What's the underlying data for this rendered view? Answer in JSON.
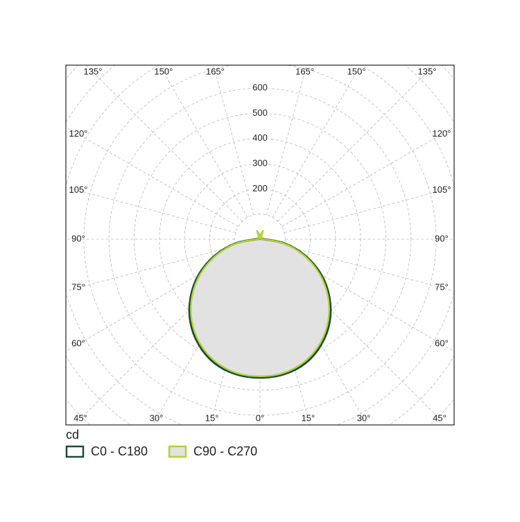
{
  "chart_data": {
    "type": "polar",
    "unit": "cd",
    "rlim": [
      0,
      1000
    ],
    "rticks": [
      200,
      300,
      400,
      500,
      600
    ],
    "rgrid": [
      100,
      200,
      300,
      400,
      500,
      600,
      700,
      800,
      900,
      1000
    ],
    "angle_ticks": [
      {
        "value": -165,
        "label": "165°"
      },
      {
        "value": -150,
        "label": "150°"
      },
      {
        "value": -135,
        "label": "135°"
      },
      {
        "value": -120,
        "label": "120°"
      },
      {
        "value": -105,
        "label": "105°"
      },
      {
        "value": -90,
        "label": "90°"
      },
      {
        "value": -75,
        "label": "75°"
      },
      {
        "value": -60,
        "label": "60°"
      },
      {
        "value": -45,
        "label": "45°"
      },
      {
        "value": -30,
        "label": "30°"
      },
      {
        "value": -15,
        "label": "15°"
      },
      {
        "value": 0,
        "label": "0°"
      },
      {
        "value": 15,
        "label": "15°"
      },
      {
        "value": 30,
        "label": "30°"
      },
      {
        "value": 45,
        "label": "45°"
      },
      {
        "value": 60,
        "label": "60°"
      },
      {
        "value": 75,
        "label": "75°"
      },
      {
        "value": 90,
        "label": "90°"
      },
      {
        "value": 105,
        "label": "105°"
      },
      {
        "value": 120,
        "label": "120°"
      },
      {
        "value": 135,
        "label": "135°"
      },
      {
        "value": 150,
        "label": "150°"
      },
      {
        "value": 165,
        "label": "165°"
      }
    ],
    "x": [
      -180,
      -170,
      -160,
      -150,
      -140,
      -130,
      -120,
      -110,
      -100,
      -90,
      -80,
      -70,
      -60,
      -50,
      -40,
      -30,
      -20,
      -10,
      0,
      10,
      20,
      30,
      40,
      50,
      60,
      70,
      80,
      90,
      100,
      110,
      120,
      130,
      140,
      150,
      160,
      170,
      180
    ],
    "fill": "#e2e2e2",
    "series": [
      {
        "name": "C0 - C180",
        "color": "#1e4a3b",
        "values": [
          8,
          8,
          12,
          8,
          5,
          5,
          5,
          5,
          5,
          15,
          100,
          190,
          280,
          360,
          430,
          485,
          525,
          545,
          550,
          545,
          525,
          485,
          430,
          360,
          280,
          190,
          100,
          15,
          5,
          5,
          5,
          5,
          5,
          8,
          12,
          8,
          8
        ]
      },
      {
        "name": "C90 - C270",
        "color": "#b3d236",
        "values": [
          10,
          20,
          35,
          10,
          5,
          5,
          5,
          5,
          5,
          12,
          94,
          183,
          272,
          352,
          422,
          478,
          518,
          540,
          545,
          540,
          518,
          478,
          422,
          352,
          272,
          183,
          94,
          12,
          5,
          5,
          5,
          5,
          5,
          10,
          35,
          20,
          10
        ]
      }
    ]
  }
}
